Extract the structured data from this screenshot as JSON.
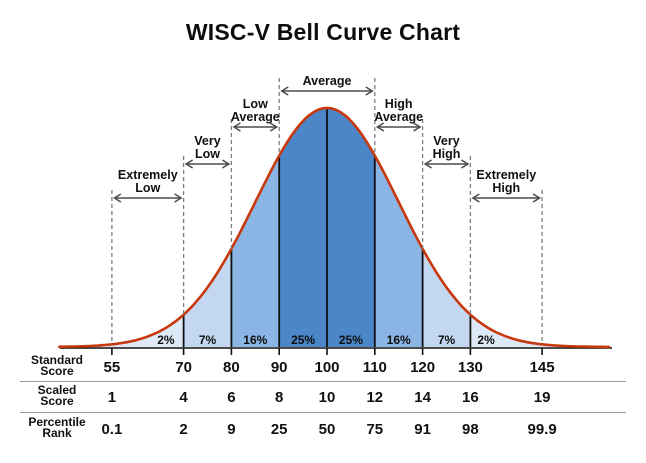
{
  "title": "WISC-V Bell Curve Chart",
  "chart_data": {
    "type": "area",
    "title": "WISC-V Bell Curve Chart",
    "distribution": "normal bell curve",
    "curve": {
      "mean": 100,
      "sd": 15,
      "stroke_color": "#c8380e"
    },
    "x_axis": {
      "label": "Standard Score",
      "ticks": [
        55,
        70,
        80,
        90,
        100,
        110,
        120,
        130,
        145
      ]
    },
    "bands": [
      {
        "percent": "2%",
        "from": 44,
        "to": 70,
        "fill": "#dde9f6"
      },
      {
        "percent": "7%",
        "from": 70,
        "to": 80,
        "fill": "#c3d8f0"
      },
      {
        "percent": "16%",
        "from": 80,
        "to": 90,
        "fill": "#8bb5e4"
      },
      {
        "percent": "25%",
        "from": 90,
        "to": 100,
        "fill": "#4a86c8"
      },
      {
        "percent": "25%",
        "from": 100,
        "to": 110,
        "fill": "#4a86c8"
      },
      {
        "percent": "16%",
        "from": 110,
        "to": 120,
        "fill": "#8bb5e4"
      },
      {
        "percent": "7%",
        "from": 120,
        "to": 130,
        "fill": "#c3d8f0"
      },
      {
        "percent": "2%",
        "from": 130,
        "to": 159,
        "fill": "#dde9f6"
      }
    ],
    "classifications": [
      {
        "label": "Extremely Low",
        "lines": [
          "Extremely",
          "Low"
        ],
        "from": 55,
        "to": 70,
        "level": 3
      },
      {
        "label": "Very Low",
        "lines": [
          "Very",
          "Low"
        ],
        "from": 70,
        "to": 80,
        "level": 2
      },
      {
        "label": "Low Average",
        "lines": [
          "Low",
          "Average"
        ],
        "from": 80,
        "to": 90,
        "level": 1
      },
      {
        "label": "Average",
        "lines": [
          "Average"
        ],
        "from": 90,
        "to": 110,
        "level": 0
      },
      {
        "label": "High Average",
        "lines": [
          "High",
          "Average"
        ],
        "from": 110,
        "to": 120,
        "level": 1
      },
      {
        "label": "Very High",
        "lines": [
          "Very",
          "High"
        ],
        "from": 120,
        "to": 130,
        "level": 2
      },
      {
        "label": "Extremely High",
        "lines": [
          "Extremely",
          "High"
        ],
        "from": 130,
        "to": 145,
        "level": 3
      }
    ]
  },
  "table": {
    "rows": [
      {
        "label": "Standard\nScore",
        "values": [
          "55",
          "70",
          "80",
          "90",
          "100",
          "110",
          "120",
          "130",
          "145"
        ]
      },
      {
        "label": "Scaled\nScore",
        "values": [
          "1",
          "4",
          "6",
          "8",
          "10",
          "12",
          "14",
          "16",
          "19"
        ]
      },
      {
        "label": "Percentile\nRank",
        "values": [
          "0.1",
          "2",
          "9",
          "25",
          "50",
          "75",
          "91",
          "98",
          "99.9"
        ]
      }
    ]
  }
}
